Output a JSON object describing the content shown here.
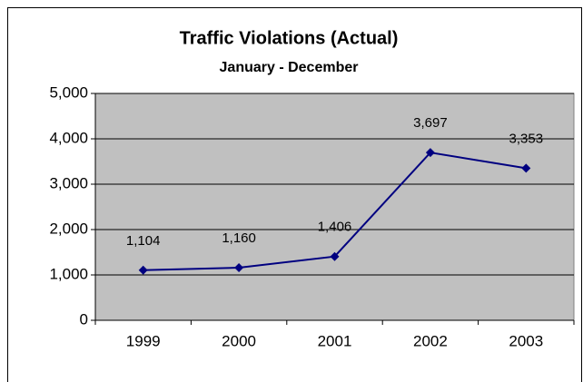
{
  "chart_data": {
    "type": "line",
    "title": "Traffic Violations (Actual)",
    "subtitle": "January - December",
    "categories": [
      "1999",
      "2000",
      "2001",
      "2002",
      "2003"
    ],
    "series": [
      {
        "name": "Traffic Violations",
        "color": "#000080",
        "values": [
          1104,
          1160,
          1406,
          3697,
          3353
        ],
        "value_labels": [
          "1,104",
          "1,160",
          "1,406",
          "3,697",
          "3,353"
        ]
      }
    ],
    "ylim": [
      0,
      5000
    ],
    "yticks": [
      0,
      {
        "value": 1000,
        "label": "1,000"
      },
      {
        "value": 2000,
        "label": "2,000"
      },
      {
        "value": 3000,
        "label": "3,000"
      },
      {
        "value": 4000,
        "label": "4,000"
      },
      {
        "value": 5000,
        "label": "5,000"
      }
    ],
    "grid": true,
    "plot_background": "#c0c0c0"
  }
}
